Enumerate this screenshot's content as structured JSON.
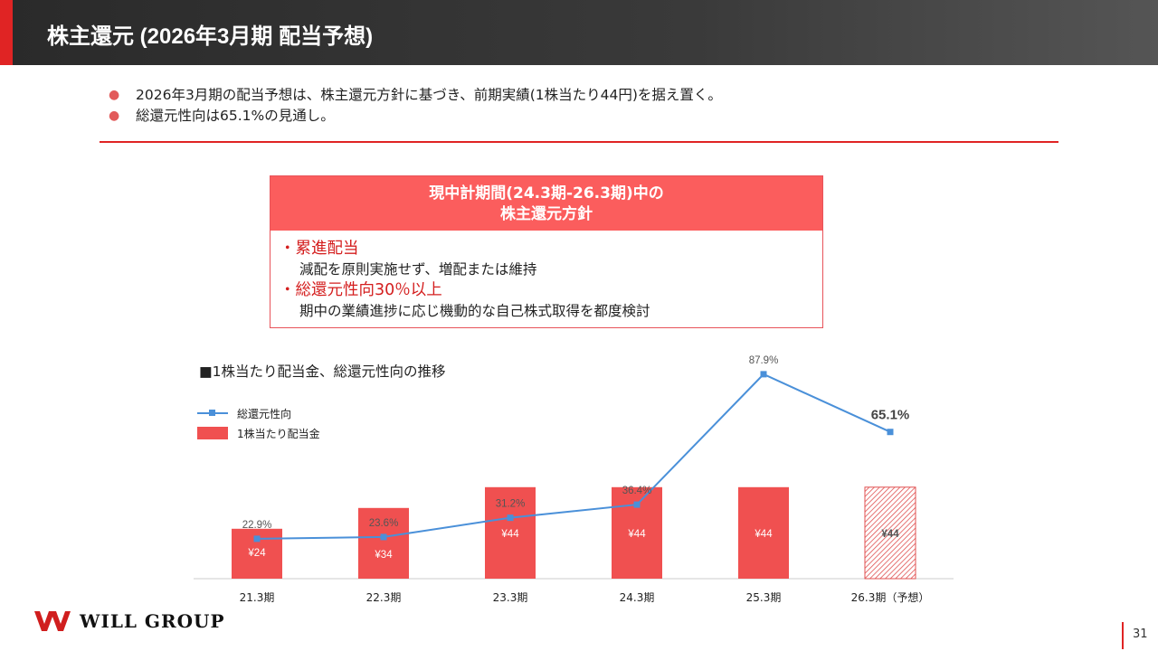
{
  "header": {
    "title": "株主還元 (2026年3月期 配当予想)"
  },
  "bullets": [
    "2026年3月期の配当予想は、株主還元方針に基づき、前期実績(1株当たり44円)を据え置く。",
    "総還元性向は65.1%の見通し。"
  ],
  "bullet_marker": "●",
  "policy": {
    "title_line1": "現中計期間(24.3期-26.3期)中の",
    "title_line2": "株主還元方針",
    "items": [
      {
        "heading": "・累進配当",
        "text": "減配を原則実施せず、増配または維持"
      },
      {
        "heading": "・総還元性向30％以上",
        "text": "期中の業績進捗に応じ機動的な自己株式取得を都度検討"
      }
    ]
  },
  "chart_title": "■1株当たり配当金、総還元性向の推移",
  "chart_data": {
    "type": "bar",
    "categories": [
      "21.3期",
      "22.3期",
      "23.3期",
      "24.3期",
      "25.3期",
      "26.3期（予想）"
    ],
    "series": [
      {
        "name": "1株当たり配当金",
        "type": "bar",
        "values": [
          24,
          34,
          44,
          44,
          44,
          44
        ],
        "labels": [
          "¥24",
          "¥34",
          "¥44",
          "¥44",
          "¥44",
          "¥44"
        ],
        "forecast_index": 5,
        "color": "#f05050"
      },
      {
        "name": "総還元性向",
        "type": "line",
        "values": [
          22.9,
          23.6,
          31.2,
          36.4,
          87.9,
          65.1
        ],
        "labels": [
          "22.9%",
          "23.6%",
          "31.2%",
          "36.4%",
          "87.9%",
          "65.1%"
        ],
        "color": "#4a90d9"
      }
    ]
  },
  "logo": {
    "text": "WILL GROUP"
  },
  "page_number": "31"
}
